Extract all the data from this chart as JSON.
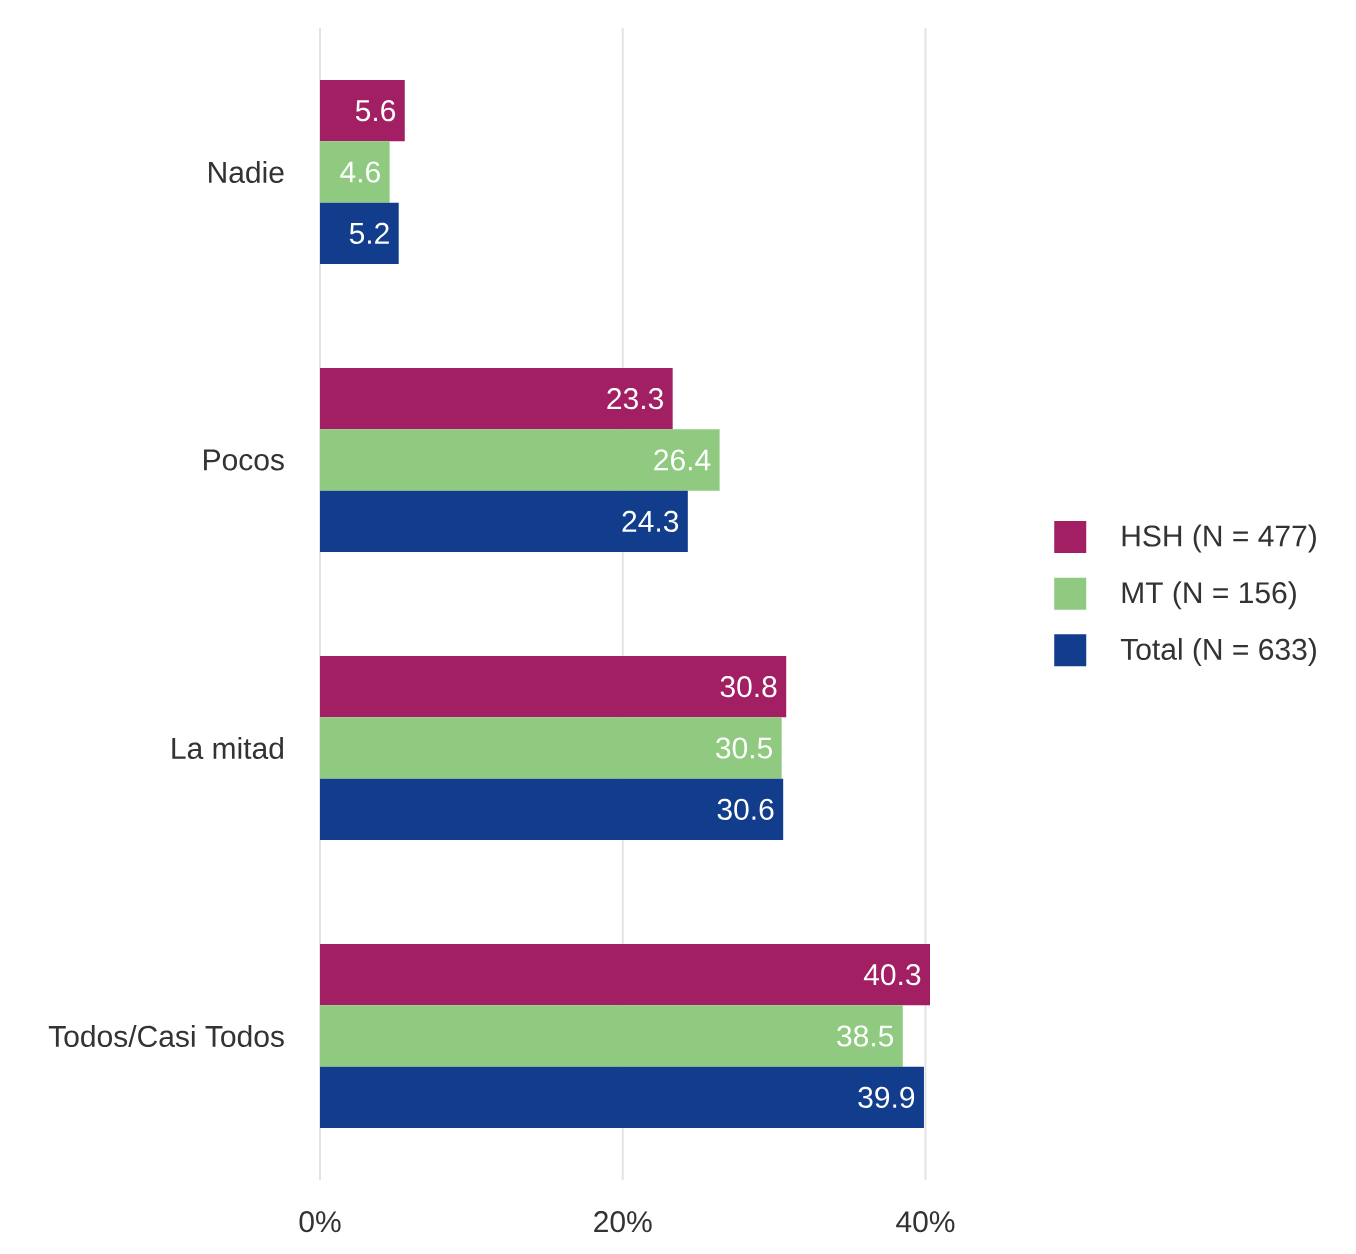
{
  "chart_data": {
    "type": "bar",
    "orientation": "horizontal",
    "categories": [
      "Nadie",
      "Pocos",
      "La mitad",
      "Todos/Casi Todos"
    ],
    "series": [
      {
        "name": "HSH (N = 477)",
        "color": "#a21f63",
        "values": [
          5.6,
          23.3,
          30.8,
          40.3
        ]
      },
      {
        "name": "MT (N = 156)",
        "color": "#8fca80",
        "values": [
          4.6,
          26.4,
          30.5,
          38.5
        ]
      },
      {
        "name": "Total (N = 633)",
        "color": "#123d8c",
        "values": [
          5.2,
          24.3,
          30.6,
          39.9
        ]
      }
    ],
    "xlim": [
      0,
      40.3
    ],
    "xticks": [
      {
        "value": 0,
        "label": "0%"
      },
      {
        "value": 20,
        "label": "20%"
      },
      {
        "value": 40,
        "label": "40%"
      }
    ],
    "grid": "x",
    "legend": "right",
    "data_labels": true
  }
}
